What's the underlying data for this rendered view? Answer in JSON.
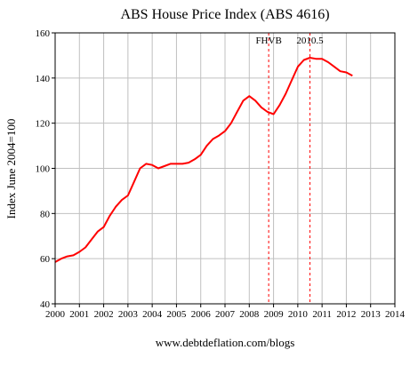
{
  "chart_data": {
    "type": "line",
    "title": "ABS House Price Index (ABS 4616)",
    "ylabel": "Index June 2004=100",
    "xlabel": "",
    "footer": "www.debtdeflation.com/blogs",
    "xlim": [
      2000,
      2014
    ],
    "ylim": [
      40,
      160
    ],
    "x_ticks": [
      "2000",
      "2001",
      "2002",
      "2003",
      "2004",
      "2005",
      "2006",
      "2007",
      "2008",
      "2009",
      "2010",
      "2011",
      "2012",
      "2013",
      "2014"
    ],
    "y_ticks": [
      "40",
      "60",
      "80",
      "100",
      "120",
      "140",
      "160"
    ],
    "grid": true,
    "line_color": "#ff0000",
    "grid_color": "#c0c0c0",
    "annotations": [
      {
        "label": "FHVB",
        "x": 2008.8
      },
      {
        "label": "2010.5",
        "x": 2010.5
      }
    ],
    "series": [
      {
        "x": [
          2000.0,
          2000.25,
          2000.5,
          2000.75,
          2001.0,
          2001.25,
          2001.5,
          2001.75,
          2002.0,
          2002.25,
          2002.5,
          2002.75,
          2003.0,
          2003.25,
          2003.5,
          2003.75,
          2004.0,
          2004.25,
          2004.5,
          2004.75,
          2005.0,
          2005.25,
          2005.5,
          2005.75,
          2006.0,
          2006.25,
          2006.5,
          2006.75,
          2007.0,
          2007.25,
          2007.5,
          2007.75,
          2008.0,
          2008.25,
          2008.5,
          2008.75,
          2009.0,
          2009.25,
          2009.5,
          2009.75,
          2010.0,
          2010.25,
          2010.5,
          2010.75,
          2011.0,
          2011.25,
          2011.5,
          2011.75,
          2012.0,
          2012.25
        ],
        "values": [
          58.5,
          60,
          61,
          61.5,
          63,
          65,
          68.5,
          72,
          74,
          79,
          83,
          86,
          88,
          94,
          100,
          102,
          101.5,
          100,
          101,
          102,
          102,
          102,
          102.5,
          104,
          106,
          110,
          113,
          114.5,
          116.5,
          120,
          125,
          130,
          132,
          130,
          127,
          125,
          124,
          128,
          133,
          139,
          145,
          148,
          149,
          148.5,
          148.5,
          147,
          145,
          143,
          142.5,
          141
        ]
      }
    ]
  }
}
